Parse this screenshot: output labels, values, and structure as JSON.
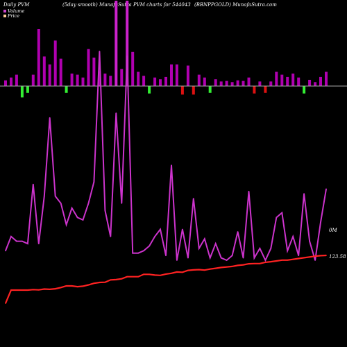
{
  "header": {
    "left": "Daily PVM",
    "smooth": "(5day smooth) MunafaSutra PVM charts for 544043",
    "right": "(BBNPPGOLD) MunafaSutra.com"
  },
  "legend": {
    "volume_label": "Volume",
    "price_label": "Price"
  },
  "colors": {
    "background": "#000000",
    "volume_up": "#b000b0",
    "volume_up_bright": "#cc22cc",
    "volume_down": "#33ee33",
    "volume_down_red": "#dd1111",
    "volume_line": "#cc33cc",
    "price_line": "#ff2222",
    "zero_line": "#aaaaaa",
    "legend_volume": "#cc44cc",
    "legend_price": "#ffcc99"
  },
  "chart_data": {
    "type": "line",
    "n": 59,
    "volume_bars": [
      {
        "value": 1.0,
        "color": "up"
      },
      {
        "value": 1.5,
        "color": "up"
      },
      {
        "value": 2.0,
        "color": "up"
      },
      {
        "value": -2.0,
        "color": "down"
      },
      {
        "value": -1.2,
        "color": "down"
      },
      {
        "value": 2.0,
        "color": "up"
      },
      {
        "value": 10.0,
        "color": "up"
      },
      {
        "value": 5.2,
        "color": "up"
      },
      {
        "value": 3.8,
        "color": "up"
      },
      {
        "value": 8.0,
        "color": "up"
      },
      {
        "value": 4.8,
        "color": "up"
      },
      {
        "value": 1.2,
        "color": "down"
      },
      {
        "value": 2.2,
        "color": "up"
      },
      {
        "value": 2.0,
        "color": "up"
      },
      {
        "value": 1.5,
        "color": "up"
      },
      {
        "value": 6.5,
        "color": "up"
      },
      {
        "value": 5.0,
        "color": "up"
      },
      {
        "value": 2.6,
        "color": "up"
      },
      {
        "value": 2.2,
        "color": "up"
      },
      {
        "value": 1.8,
        "color": "up"
      },
      {
        "value": 15.0,
        "color": "up_bright"
      },
      {
        "value": 3.0,
        "color": "up"
      },
      {
        "value": 15.0,
        "color": "up_bright"
      },
      {
        "value": 6.0,
        "color": "up"
      },
      {
        "value": 2.5,
        "color": "up"
      },
      {
        "value": 1.8,
        "color": "up"
      },
      {
        "value": 1.3,
        "color": "down"
      },
      {
        "value": 1.5,
        "color": "up"
      },
      {
        "value": 1.2,
        "color": "up"
      },
      {
        "value": 1.6,
        "color": "up"
      },
      {
        "value": 3.8,
        "color": "up"
      },
      {
        "value": 3.8,
        "color": "up"
      },
      {
        "value": -1.5,
        "color": "red"
      },
      {
        "value": 3.6,
        "color": "up"
      },
      {
        "value": -1.5,
        "color": "red"
      },
      {
        "value": 2.0,
        "color": "up"
      },
      {
        "value": 1.5,
        "color": "up"
      },
      {
        "value": 1.2,
        "color": "down"
      },
      {
        "value": 1.2,
        "color": "up"
      },
      {
        "value": 0.8,
        "color": "up"
      },
      {
        "value": 0.9,
        "color": "up"
      },
      {
        "value": 0.7,
        "color": "up"
      },
      {
        "value": 1.0,
        "color": "up"
      },
      {
        "value": 0.9,
        "color": "up"
      },
      {
        "value": 1.5,
        "color": "up"
      },
      {
        "value": 1.3,
        "color": "red"
      },
      {
        "value": 0.8,
        "color": "up"
      },
      {
        "value": 1.2,
        "color": "red"
      },
      {
        "value": 0.8,
        "color": "up"
      },
      {
        "value": 2.5,
        "color": "up"
      },
      {
        "value": 2.0,
        "color": "up"
      },
      {
        "value": 1.6,
        "color": "up"
      },
      {
        "value": 2.2,
        "color": "up"
      },
      {
        "value": 1.5,
        "color": "up"
      },
      {
        "value": 1.3,
        "color": "down"
      },
      {
        "value": 1.1,
        "color": "up"
      },
      {
        "value": 0.7,
        "color": "up"
      },
      {
        "value": 1.6,
        "color": "up"
      },
      {
        "value": 2.5,
        "color": "up"
      }
    ],
    "volume_line": [
      4,
      10,
      8,
      8,
      7,
      32,
      7,
      27,
      60,
      27,
      24,
      15,
      22,
      18,
      17,
      24,
      33,
      88,
      21,
      10,
      62,
      24,
      86,
      3,
      3,
      4,
      6,
      10,
      13,
      2,
      40,
      0,
      13,
      1,
      26,
      5,
      9,
      1,
      7,
      1,
      0,
      2,
      12,
      1,
      29,
      1,
      5,
      0,
      5,
      18,
      20,
      4,
      10,
      2,
      28,
      8,
      0,
      16,
      30
    ],
    "price_line": [
      39,
      44,
      44,
      44,
      44,
      44.2,
      44.1,
      44.4,
      44.3,
      44.5,
      45,
      45.6,
      45.6,
      45.3,
      45.5,
      46,
      46.6,
      46.9,
      47,
      47.9,
      48,
      48.3,
      49.1,
      49.1,
      49.1,
      50,
      50,
      49.7,
      49.6,
      50.1,
      50.4,
      50.9,
      50.8,
      51.5,
      51.7,
      51.8,
      51.6,
      52,
      52.3,
      52.6,
      52.8,
      53,
      53.4,
      53.6,
      54,
      54.1,
      54.1,
      54.6,
      54.8,
      55.1,
      55.4,
      55.4,
      55.7,
      56,
      56.3,
      56.6,
      56.9,
      57.1,
      57.2
    ],
    "price_label": "123.58",
    "volume_label": "0M"
  }
}
